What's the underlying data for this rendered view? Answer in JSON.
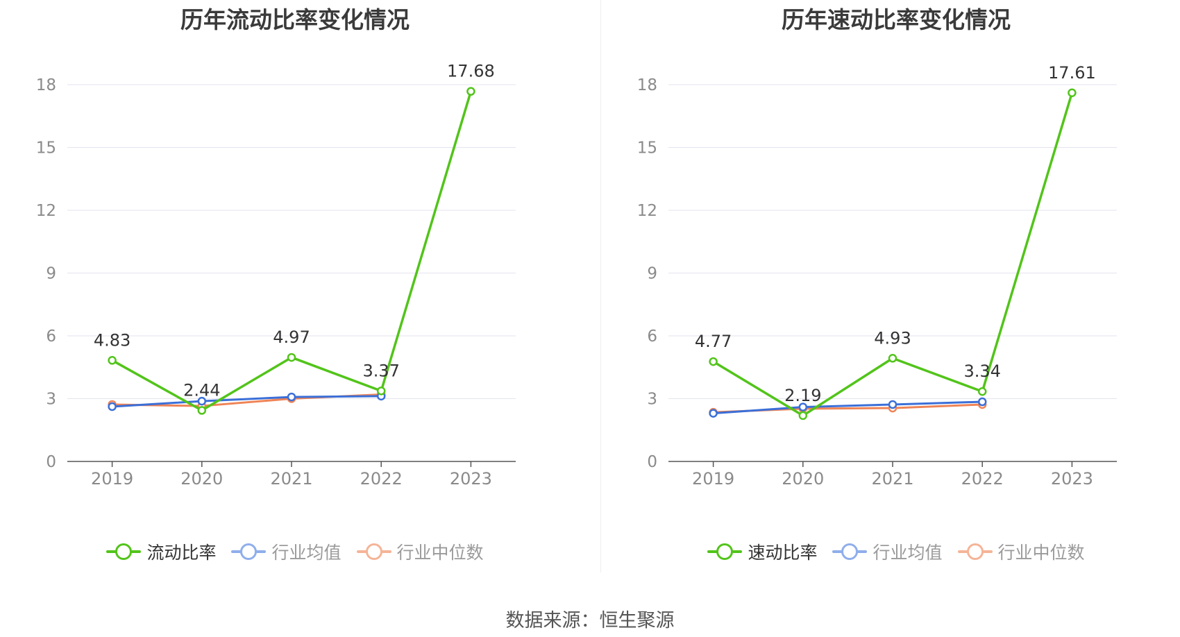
{
  "source_text": "数据来源：恒生聚源",
  "chart_data": [
    {
      "type": "line",
      "title": "历年流动比率变化情况",
      "x": [
        "2019",
        "2020",
        "2021",
        "2022",
        "2023"
      ],
      "yticks": [
        0,
        3,
        6,
        9,
        12,
        15,
        18
      ],
      "ylim": [
        0,
        18
      ],
      "grid": true,
      "legend_position": "bottom",
      "series": [
        {
          "name": "流动比率",
          "color": "#52c41a",
          "values": [
            4.83,
            2.44,
            4.97,
            3.37,
            17.68
          ],
          "labels": [
            "4.83",
            "2.44",
            "4.97",
            "3.37",
            "17.68"
          ],
          "legend_faded": false
        },
        {
          "name": "行业均值",
          "color": "#3b6fd8",
          "legend_color": "#8faeeb",
          "values": [
            2.62,
            2.88,
            3.08,
            3.12,
            null
          ],
          "legend_faded": true
        },
        {
          "name": "行业中位数",
          "color": "#ef8456",
          "legend_color": "#f5b497",
          "values": [
            2.72,
            2.65,
            3.0,
            3.2,
            null
          ],
          "legend_faded": true
        }
      ]
    },
    {
      "type": "line",
      "title": "历年速动比率变化情况",
      "x": [
        "2019",
        "2020",
        "2021",
        "2022",
        "2023"
      ],
      "yticks": [
        0,
        3,
        6,
        9,
        12,
        15,
        18
      ],
      "ylim": [
        0,
        18
      ],
      "grid": true,
      "legend_position": "bottom",
      "series": [
        {
          "name": "速动比率",
          "color": "#52c41a",
          "values": [
            4.77,
            2.19,
            4.93,
            3.34,
            17.61
          ],
          "labels": [
            "4.77",
            "2.19",
            "4.93",
            "3.34",
            "17.61"
          ],
          "legend_faded": false
        },
        {
          "name": "行业均值",
          "color": "#3b6fd8",
          "legend_color": "#8faeeb",
          "values": [
            2.3,
            2.6,
            2.72,
            2.85,
            null
          ],
          "legend_faded": true
        },
        {
          "name": "行业中位数",
          "color": "#ef8456",
          "legend_color": "#f5b497",
          "values": [
            2.35,
            2.52,
            2.55,
            2.72,
            null
          ],
          "legend_faded": true
        }
      ]
    }
  ]
}
